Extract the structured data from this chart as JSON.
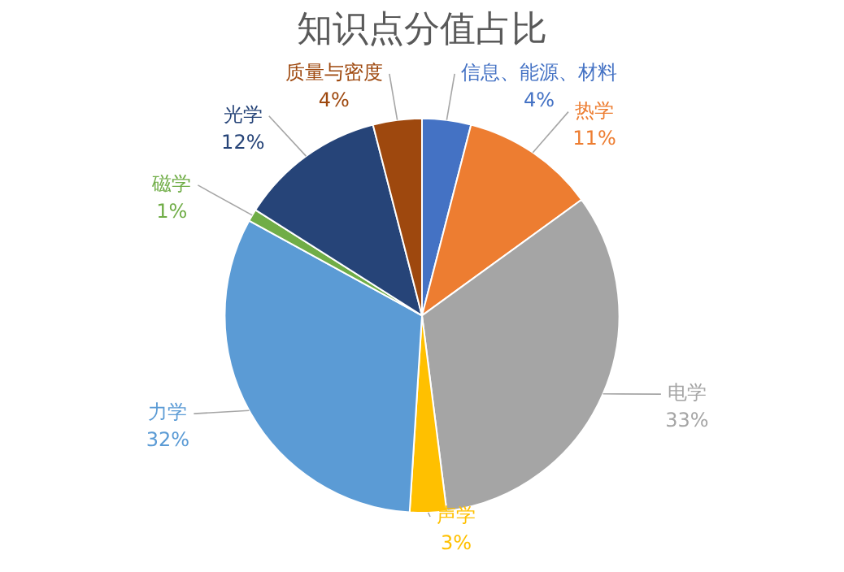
{
  "chart_data": {
    "type": "pie",
    "title": "知识点分值占比",
    "categories": [
      "信息、能源、材料",
      "热学",
      "电学",
      "声学",
      "力学",
      "磁学",
      "光学",
      "质量与密度"
    ],
    "values": [
      4,
      11,
      33,
      3,
      32,
      1,
      12,
      4
    ],
    "value_labels": [
      "4%",
      "11%",
      "33%",
      "3%",
      "32%",
      "1%",
      "12%",
      "4%"
    ],
    "colors": [
      "#4472c4",
      "#ed7d31",
      "#a5a5a5",
      "#ffc000",
      "#5b9bd5",
      "#70ad47",
      "#264478",
      "#9e480e"
    ],
    "legend": false
  }
}
